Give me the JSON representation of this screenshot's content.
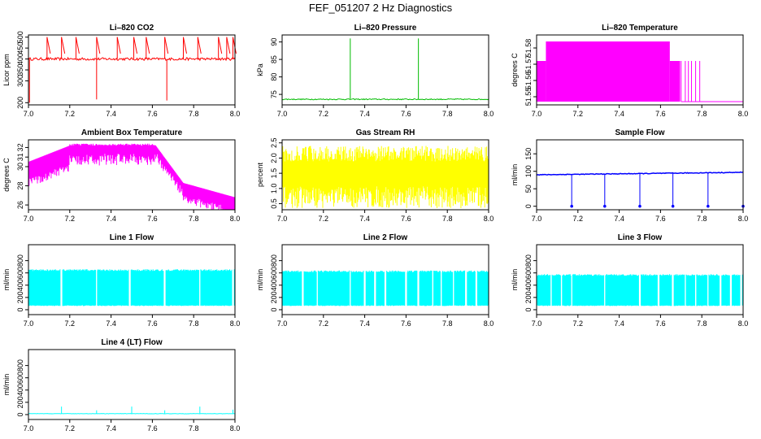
{
  "page_title": "FEF_051207  2 Hz Diagnostics",
  "chart_data": [
    {
      "type": "line",
      "title": "Li–820 CO2",
      "ylabel": "Licor ppm",
      "color": "#ff0000",
      "xlim": [
        7.0,
        8.0
      ],
      "ylim": [
        190,
        510
      ],
      "xticks": [
        "7.0",
        "7.2",
        "7.4",
        "7.6",
        "7.8",
        "8.0"
      ],
      "yticks": [
        200,
        300,
        350,
        400,
        450,
        500
      ],
      "ytick_labels": [
        "200",
        "300",
        "350",
        "400",
        "450",
        "500"
      ],
      "pattern": "flat_with_spikes",
      "base": 400,
      "noise": 6,
      "spikes_up": [
        7.09,
        7.16,
        7.23,
        7.33,
        7.43,
        7.51,
        7.57,
        7.66,
        7.75,
        7.82,
        7.92,
        7.96,
        7.99
      ],
      "spike_up_value": 500,
      "spikes_down": [
        7.005,
        7.33,
        7.67,
        8.0
      ],
      "spike_down_values": [
        200,
        215,
        210,
        375
      ]
    },
    {
      "type": "line",
      "title": "Li–820 Pressure",
      "ylabel": "kPa",
      "color": "#00bb00",
      "xlim": [
        7.0,
        8.0
      ],
      "ylim": [
        72,
        92
      ],
      "xticks": [
        "7.0",
        "7.2",
        "7.4",
        "7.6",
        "7.8",
        "8.0"
      ],
      "yticks": [
        75,
        80,
        85,
        90
      ],
      "ytick_labels": [
        "75",
        "80",
        "85",
        "90"
      ],
      "pattern": "flat_with_spikes",
      "base": 73.6,
      "noise": 0.15,
      "spikes_up": [
        7.0,
        7.33,
        7.66,
        8.0
      ],
      "spike_up_values": [
        88,
        91,
        91,
        91
      ]
    },
    {
      "type": "area",
      "title": "Li–820 Temperature",
      "ylabel": "degrees C",
      "color": "#ff00ff",
      "xlim": [
        7.0,
        8.0
      ],
      "ylim": [
        51.545,
        51.588
      ],
      "xticks": [
        "7.0",
        "7.2",
        "7.4",
        "7.6",
        "7.8",
        "8.0"
      ],
      "yticks": [
        51.55,
        51.56,
        51.57,
        51.58
      ],
      "ytick_labels": [
        "51.55",
        "51.56",
        "51.57",
        "51.58"
      ],
      "pattern": "temperature_band"
    },
    {
      "type": "line",
      "title": "Ambient Box Temperature",
      "ylabel": "degrees C",
      "color": "#ff00ff",
      "xlim": [
        7.0,
        8.0
      ],
      "ylim": [
        25.5,
        32.8
      ],
      "xticks": [
        "7.0",
        "7.2",
        "7.4",
        "7.6",
        "7.8",
        "8.0"
      ],
      "yticks": [
        26,
        28,
        30,
        31,
        32
      ],
      "ytick_labels": [
        "26",
        "28",
        "30",
        "31",
        "32"
      ],
      "pattern": "ambient_temperature"
    },
    {
      "type": "line",
      "title": "Gas Stream RH",
      "ylabel": "percent",
      "color": "#ffff00",
      "xlim": [
        7.0,
        8.0
      ],
      "ylim": [
        0.3,
        2.6
      ],
      "xticks": [
        "7.0",
        "7.2",
        "7.4",
        "7.6",
        "7.8",
        "8.0"
      ],
      "yticks": [
        0.5,
        1.0,
        1.5,
        2.0,
        2.5
      ],
      "ytick_labels": [
        "0.5",
        "1.0",
        "1.5",
        "2.0",
        "2.5"
      ],
      "pattern": "noise_band",
      "band_low": 0.35,
      "band_high": 2.4
    },
    {
      "type": "line",
      "title": "Sample Flow",
      "ylabel": "ml/min",
      "color": "#0000ff",
      "xlim": [
        7.0,
        8.0
      ],
      "ylim": [
        -10,
        190
      ],
      "xticks": [
        "7.0",
        "7.2",
        "7.4",
        "7.6",
        "7.8",
        "8.0"
      ],
      "yticks": [
        0,
        50,
        100,
        150
      ],
      "ytick_labels": [
        "0",
        "50",
        "100",
        "150"
      ],
      "pattern": "flat_with_drops",
      "base_start": 90,
      "base_end": 97,
      "drops": [
        7.17,
        7.33,
        7.5,
        7.66,
        7.83,
        8.0
      ],
      "drop_value": 0
    },
    {
      "type": "line",
      "title": "Line 1 Flow",
      "ylabel": "ml/min",
      "color": "#00ffff",
      "xlim": [
        7.0,
        8.0
      ],
      "ylim": [
        -80,
        1060
      ],
      "xticks": [
        "7.0",
        "7.2",
        "7.4",
        "7.6",
        "7.8",
        "8.0"
      ],
      "yticks": [
        0,
        200,
        400,
        600,
        800
      ],
      "ytick_labels": [
        "0",
        "200",
        "400",
        "600",
        "800"
      ],
      "pattern": "flow_band",
      "band_low": 60,
      "band_high": 660,
      "gaps": [
        7.16,
        7.33,
        7.49,
        7.66,
        7.83,
        7.99
      ]
    },
    {
      "type": "line",
      "title": "Line 2 Flow",
      "ylabel": "ml/min",
      "color": "#00ffff",
      "xlim": [
        7.0,
        8.0
      ],
      "ylim": [
        -80,
        1060
      ],
      "xticks": [
        "7.0",
        "7.2",
        "7.4",
        "7.6",
        "7.8",
        "8.0"
      ],
      "yticks": [
        0,
        200,
        400,
        600,
        800
      ],
      "ytick_labels": [
        "0",
        "200",
        "400",
        "600",
        "800"
      ],
      "pattern": "flow_band",
      "band_low": 60,
      "band_high": 640,
      "gaps": [
        7.1,
        7.17,
        7.33,
        7.4,
        7.45,
        7.5,
        7.6,
        7.66,
        7.73,
        7.77,
        7.83,
        7.89,
        7.94
      ]
    },
    {
      "type": "line",
      "title": "Line 3 Flow",
      "ylabel": "ml/min",
      "color": "#00ffff",
      "xlim": [
        7.0,
        8.0
      ],
      "ylim": [
        -80,
        1060
      ],
      "xticks": [
        "7.0",
        "7.2",
        "7.4",
        "7.6",
        "7.8",
        "8.0"
      ],
      "yticks": [
        0,
        200,
        400,
        600,
        800
      ],
      "ytick_labels": [
        "0",
        "200",
        "400",
        "600",
        "800"
      ],
      "pattern": "flow_band",
      "band_low": 60,
      "band_high": 580,
      "gaps": [
        7.07,
        7.12,
        7.17,
        7.33,
        7.5,
        7.59,
        7.66,
        7.72,
        7.77,
        7.83,
        7.89,
        7.94,
        7.99
      ]
    },
    {
      "type": "line",
      "title": "Line 4 (LT) Flow",
      "ylabel": "ml/min",
      "color": "#00ffff",
      "xlim": [
        7.0,
        8.0
      ],
      "ylim": [
        -80,
        1060
      ],
      "xticks": [
        "7.0",
        "7.2",
        "7.4",
        "7.6",
        "7.8",
        "8.0"
      ],
      "yticks": [
        0,
        200,
        400,
        600,
        800
      ],
      "ytick_labels": [
        "0",
        "200",
        "400",
        "600",
        "800"
      ],
      "pattern": "flat_with_spikes",
      "base": 15,
      "noise": 3,
      "spikes_up": [
        7.16,
        7.33,
        7.5,
        7.66,
        7.83,
        7.99
      ],
      "spike_up_values": [
        130,
        70,
        130,
        70,
        130,
        80
      ]
    }
  ]
}
